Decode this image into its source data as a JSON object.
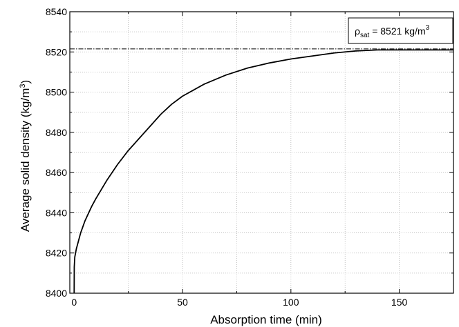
{
  "chart_data": {
    "type": "line",
    "xlabel": "Absorption time (min)",
    "ylabel": "Average solid density (kg/m",
    "ylabel_sup": "3",
    "ylabel_close": ")",
    "xlim": [
      -2,
      175
    ],
    "ylim": [
      8400,
      8540
    ],
    "xticks": [
      0,
      50,
      100,
      150
    ],
    "yticks": [
      8400,
      8420,
      8440,
      8460,
      8480,
      8500,
      8520,
      8540
    ],
    "grid": true,
    "reference_line": {
      "y": 8521.5,
      "style": "dash-dot"
    },
    "annotation": {
      "symbol": "ρ",
      "subscript": "sat",
      "text": " = 8521 kg/m",
      "superscript": "3"
    },
    "series": [
      {
        "x": [
          0,
          0.05,
          0.3,
          1,
          2,
          3,
          5,
          8,
          10,
          15,
          20,
          25,
          30,
          40,
          45,
          50,
          55,
          60,
          70,
          80,
          90,
          100,
          110,
          120,
          130,
          140,
          150,
          160,
          170,
          175
        ],
        "y": [
          8400,
          8413,
          8418,
          8422,
          8426,
          8430,
          8436,
          8443,
          8447,
          8456,
          8464,
          8471,
          8477,
          8489,
          8494,
          8498,
          8501,
          8504,
          8508.5,
          8512,
          8514.5,
          8516.5,
          8518,
          8519.5,
          8520.5,
          8521,
          8521,
          8521,
          8521,
          8521
        ]
      }
    ]
  }
}
